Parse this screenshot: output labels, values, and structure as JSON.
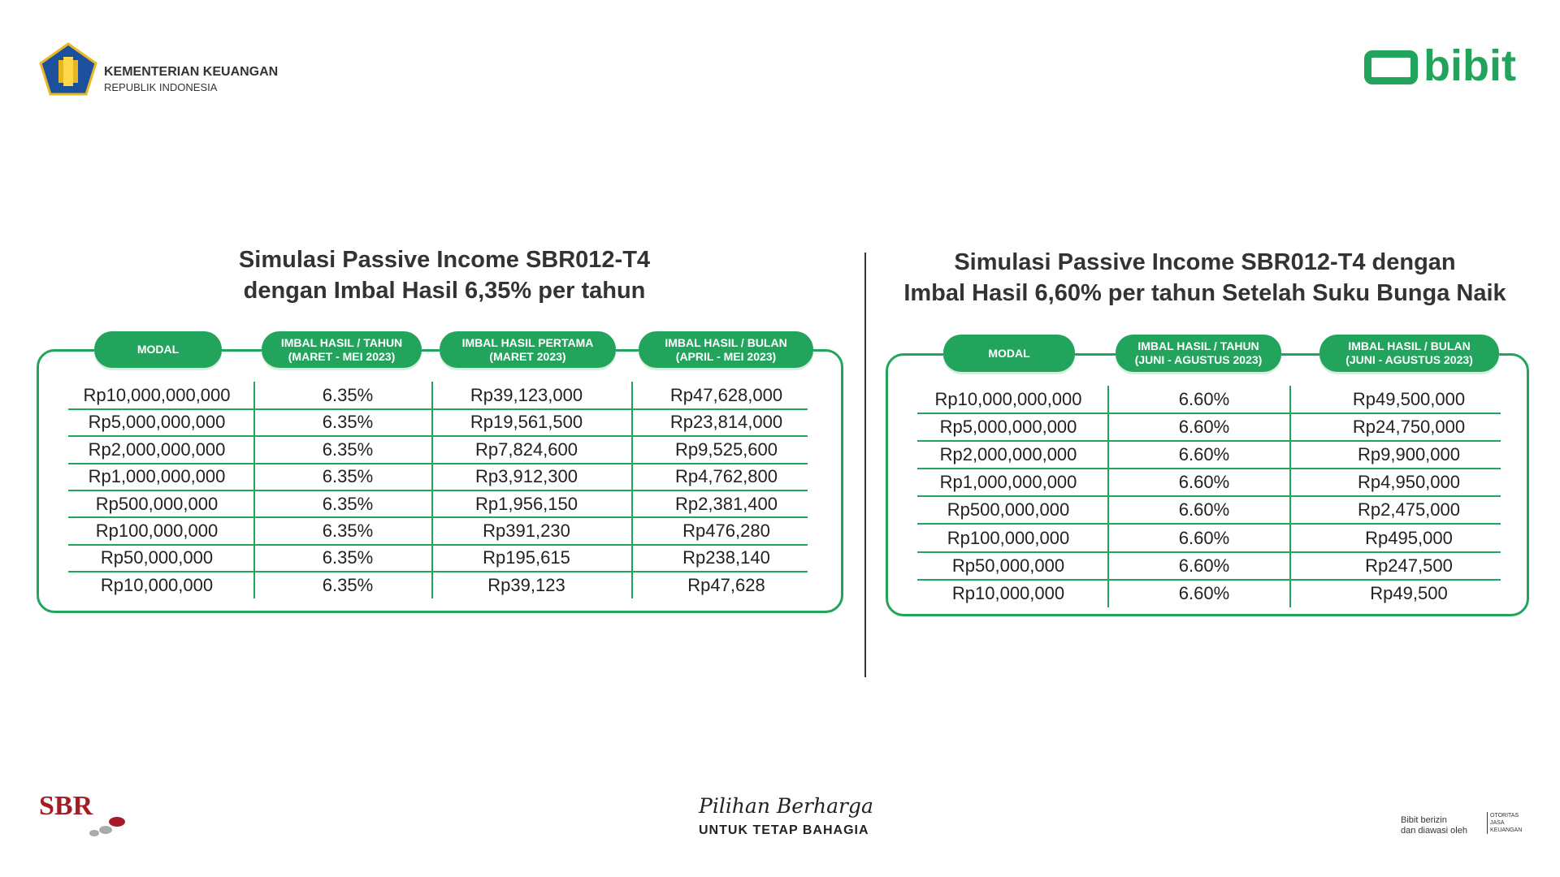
{
  "header": {
    "ministry": "KEMENTERIAN KEUANGAN",
    "ministry_sub": "REPUBLIK INDONESIA",
    "brand": "bibit"
  },
  "tables": [
    {
      "title": [
        "Simulasi Passive Income SBR012-T4",
        "dengan Imbal Hasil 6,35% per tahun"
      ],
      "columns": [
        [
          "MODAL"
        ],
        [
          "IMBAL HASIL / TAHUN",
          "(MARET - MEI 2023)"
        ],
        [
          "IMBAL HASIL PERTAMA",
          "(MARET 2023)"
        ],
        [
          "IMBAL HASIL / BULAN",
          "(APRIL - MEI 2023)"
        ]
      ],
      "rows": [
        [
          "Rp10,000,000,000",
          "6.35%",
          "Rp39,123,000",
          "Rp47,628,000"
        ],
        [
          "Rp5,000,000,000",
          "6.35%",
          "Rp19,561,500",
          "Rp23,814,000"
        ],
        [
          "Rp2,000,000,000",
          "6.35%",
          "Rp7,824,600",
          "Rp9,525,600"
        ],
        [
          "Rp1,000,000,000",
          "6.35%",
          "Rp3,912,300",
          "Rp4,762,800"
        ],
        [
          "Rp500,000,000",
          "6.35%",
          "Rp1,956,150",
          "Rp2,381,400"
        ],
        [
          "Rp100,000,000",
          "6.35%",
          "Rp391,230",
          "Rp476,280"
        ],
        [
          "Rp50,000,000",
          "6.35%",
          "Rp195,615",
          "Rp238,140"
        ],
        [
          "Rp10,000,000",
          "6.35%",
          "Rp39,123",
          "Rp47,628"
        ]
      ]
    },
    {
      "title": [
        "Simulasi Passive Income SBR012-T4 dengan",
        "Imbal Hasil 6,60% per tahun Setelah Suku Bunga Naik"
      ],
      "columns": [
        [
          "MODAL"
        ],
        [
          "IMBAL HASIL / TAHUN",
          "(JUNI - AGUSTUS 2023)"
        ],
        [
          "IMBAL HASIL / BULAN",
          "(JUNI - AGUSTUS 2023)"
        ]
      ],
      "rows": [
        [
          "Rp10,000,000,000",
          "6.60%",
          "Rp49,500,000"
        ],
        [
          "Rp5,000,000,000",
          "6.60%",
          "Rp24,750,000"
        ],
        [
          "Rp2,000,000,000",
          "6.60%",
          "Rp9,900,000"
        ],
        [
          "Rp1,000,000,000",
          "6.60%",
          "Rp4,950,000"
        ],
        [
          "Rp500,000,000",
          "6.60%",
          "Rp2,475,000"
        ],
        [
          "Rp100,000,000",
          "6.60%",
          "Rp495,000"
        ],
        [
          "Rp50,000,000",
          "6.60%",
          "Rp247,500"
        ],
        [
          "Rp10,000,000",
          "6.60%",
          "Rp49,500"
        ]
      ]
    }
  ],
  "footer": {
    "sbr": "SBR",
    "tagline": "Pilihan Berharga",
    "tagline_sub": "UNTUK TETAP BAHAGIA",
    "regulated": [
      "Bibit berizin",
      "dan diawasi oleh"
    ],
    "ojk": [
      "OTORITAS",
      "JASA",
      "KEUANGAN"
    ]
  }
}
